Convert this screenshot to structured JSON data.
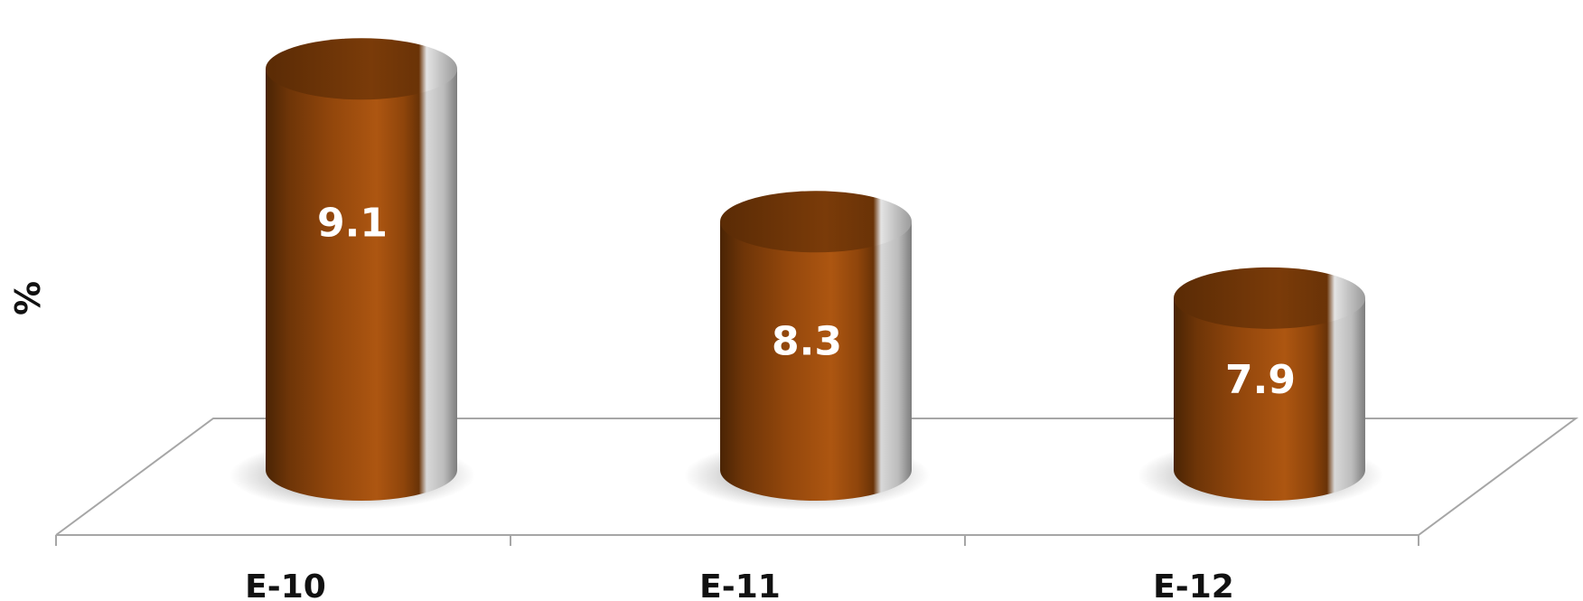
{
  "chart_data": {
    "type": "bar",
    "style": "3d-cylinder",
    "categories": [
      "E-10",
      "E-11",
      "E-12"
    ],
    "values": [
      9.1,
      8.3,
      7.9
    ],
    "title": "",
    "xlabel": "",
    "ylabel": "%",
    "ylim": [
      7.0,
      9.3
    ],
    "grid": false,
    "data_labels": [
      "9.1",
      "8.3",
      "7.9"
    ],
    "colors": {
      "bar": "#a0500f",
      "bar_dark": "#5e2d06",
      "bar_top": "#6b3407",
      "bar_highlight": "#c2c2c2",
      "floor": "#a6a6a6",
      "label_text": "#ffffff",
      "axis_text": "#111111"
    }
  }
}
